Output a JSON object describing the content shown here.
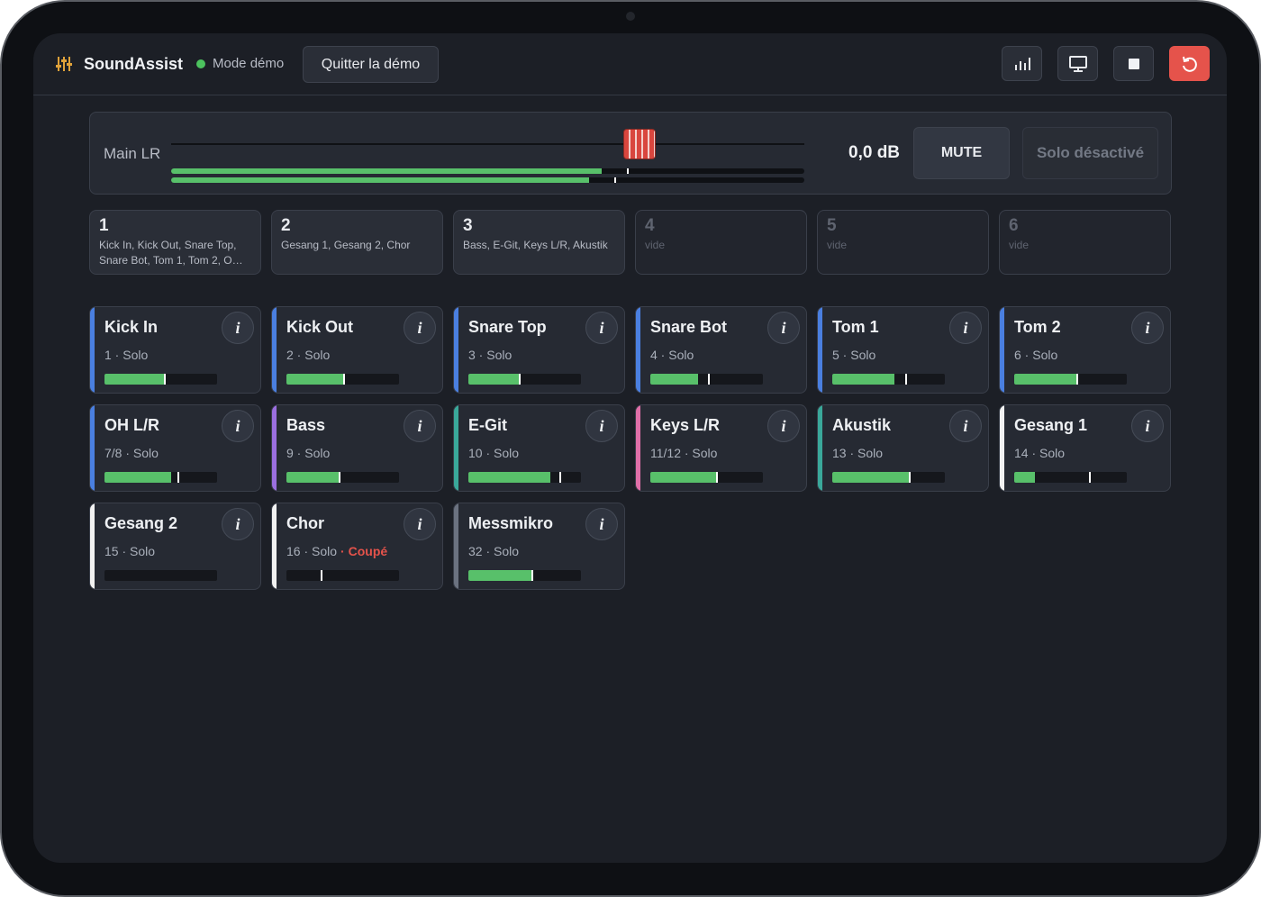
{
  "header": {
    "app_name": "SoundAssist",
    "mode": "Mode démo",
    "exit_button": "Quitter la démo"
  },
  "main": {
    "label": "Main LR",
    "fader": 74,
    "gain": "0,0 dB",
    "mute_button": "MUTE",
    "solo_button": "Solo désactivé",
    "meters": [
      {
        "level": 68,
        "peak": 72
      },
      {
        "level": 66,
        "peak": 70
      }
    ]
  },
  "groups": [
    {
      "number": 1,
      "members": "Kick In, Kick Out, Snare Top, Snare Bot, Tom 1, Tom 2, O…"
    },
    {
      "number": 2,
      "members": "Gesang 1, Gesang 2, Chor"
    },
    {
      "number": 3,
      "members": "Bass, E-Git, Keys L/R, Akustik"
    },
    {
      "number": 4,
      "members": "vide",
      "empty": true
    },
    {
      "number": 5,
      "members": "vide",
      "empty": true
    },
    {
      "number": 6,
      "members": "vide",
      "empty": true
    }
  ],
  "info_icon": "i",
  "channels": [
    {
      "name": "Kick In",
      "detail": "1 · Solo",
      "color": "#4a7fe0",
      "level": 53,
      "peak": 53
    },
    {
      "name": "Kick Out",
      "detail": "2 · Solo",
      "color": "#4a7fe0",
      "level": 50,
      "peak": 50
    },
    {
      "name": "Snare Top",
      "detail": "3 · Solo",
      "color": "#4a7fe0",
      "level": 45,
      "peak": 45
    },
    {
      "name": "Snare Bot",
      "detail": "4 · Solo",
      "color": "#4a7fe0",
      "level": 42,
      "peak": 51
    },
    {
      "name": "Tom 1",
      "detail": "5 · Solo",
      "color": "#4a7fe0",
      "level": 55,
      "peak": 65
    },
    {
      "name": "Tom 2",
      "detail": "6 · Solo",
      "color": "#4a7fe0",
      "level": 55,
      "peak": 55
    },
    {
      "name": "OH L/R",
      "detail": "7/8 · Solo",
      "color": "#4a7fe0",
      "level": 59,
      "peak": 65
    },
    {
      "name": "Bass",
      "detail": "9 · Solo",
      "color": "#9b6fe0",
      "level": 46,
      "peak": 46
    },
    {
      "name": "E-Git",
      "detail": "10 · Solo",
      "color": "#3aa89a",
      "level": 73,
      "peak": 81
    },
    {
      "name": "Keys L/R",
      "detail": "11/12 · Solo",
      "color": "#e06fa8",
      "level": 58,
      "peak": 58
    },
    {
      "name": "Akustik",
      "detail": "13 · Solo",
      "color": "#3aa89a",
      "level": 68,
      "peak": 68
    },
    {
      "name": "Gesang 1",
      "detail": "14 · Solo",
      "color": "#f2f2f2",
      "level": 18,
      "peak": 66
    },
    {
      "name": "Gesang 2",
      "detail": "15 · Solo",
      "color": "#f2f2f2",
      "level": 0,
      "peak": null
    },
    {
      "name": "Chor",
      "detail": "16 · Solo",
      "status": "· Coupé",
      "color": "#f2f2f2",
      "level": 0,
      "peak": 30
    },
    {
      "name": "Messmikro",
      "detail": "32 · Solo",
      "color": "#6b7280",
      "level": 56,
      "peak": 56
    }
  ]
}
